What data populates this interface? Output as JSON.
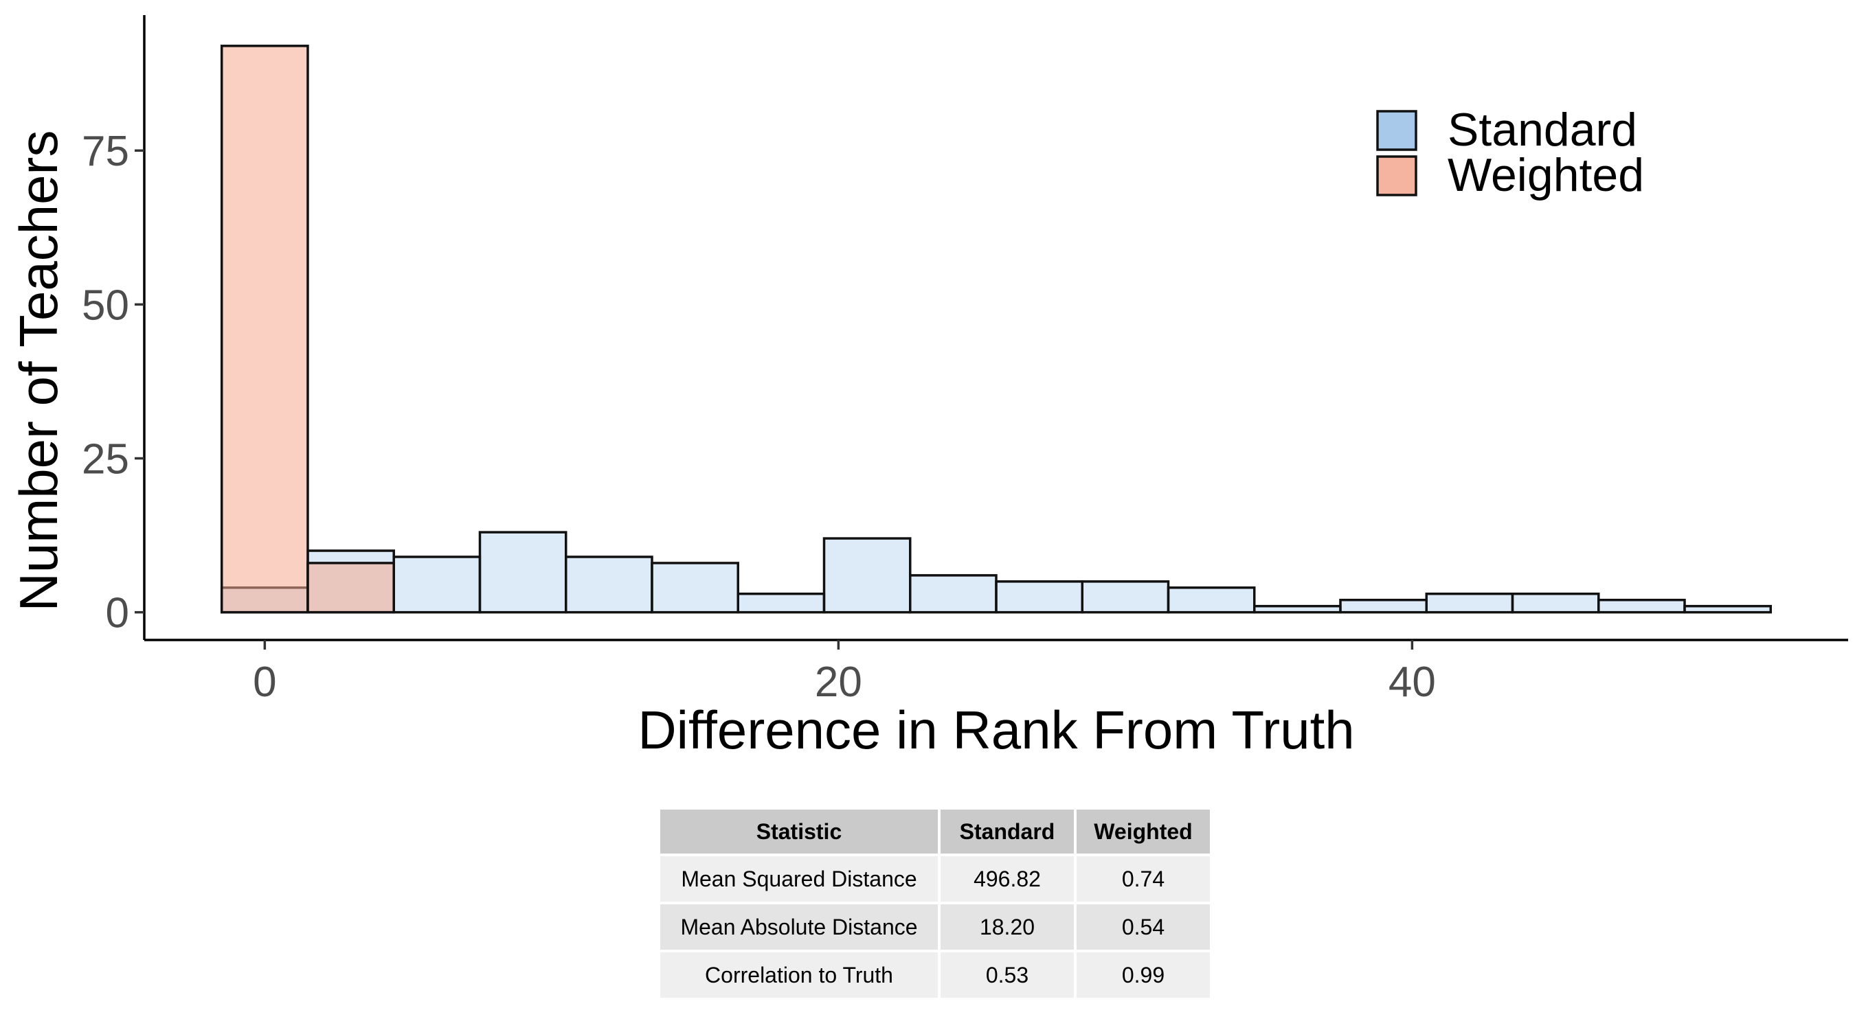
{
  "chart_data": {
    "type": "bar",
    "subtype": "overlapping-histogram",
    "xlabel": "Difference in Rank From Truth",
    "ylabel": "Number of Teachers",
    "xlim": [
      -4.2,
      55.2
    ],
    "ylim": [
      -4.5,
      97
    ],
    "x_ticks": [
      0,
      20,
      40
    ],
    "y_ticks": [
      0,
      25,
      50,
      75
    ],
    "grid": false,
    "legend_position": "top-right",
    "bin_width": 3,
    "series": [
      {
        "name": "Standard",
        "color": "#c6dcf2",
        "legend_color": "#a9c9eb",
        "opacity": 0.6,
        "bins": [
          {
            "x0": -1.5,
            "x1": 1.5,
            "count": 4
          },
          {
            "x0": 1.5,
            "x1": 4.5,
            "count": 10
          },
          {
            "x0": 4.5,
            "x1": 7.5,
            "count": 9
          },
          {
            "x0": 7.5,
            "x1": 10.5,
            "count": 13
          },
          {
            "x0": 10.5,
            "x1": 13.5,
            "count": 9
          },
          {
            "x0": 13.5,
            "x1": 16.5,
            "count": 8
          },
          {
            "x0": 16.5,
            "x1": 19.5,
            "count": 3
          },
          {
            "x0": 19.5,
            "x1": 22.5,
            "count": 12
          },
          {
            "x0": 22.5,
            "x1": 25.5,
            "count": 6
          },
          {
            "x0": 25.5,
            "x1": 28.5,
            "count": 5
          },
          {
            "x0": 28.5,
            "x1": 31.5,
            "count": 5
          },
          {
            "x0": 31.5,
            "x1": 34.5,
            "count": 4
          },
          {
            "x0": 34.5,
            "x1": 37.5,
            "count": 1
          },
          {
            "x0": 37.5,
            "x1": 40.5,
            "count": 2
          },
          {
            "x0": 40.5,
            "x1": 43.5,
            "count": 3
          },
          {
            "x0": 43.5,
            "x1": 46.5,
            "count": 3
          },
          {
            "x0": 46.5,
            "x1": 49.5,
            "count": 2
          },
          {
            "x0": 49.5,
            "x1": 52.5,
            "count": 1
          }
        ]
      },
      {
        "name": "Weighted",
        "color": "#f4aa90",
        "legend_color": "#f5b4a0",
        "opacity": 0.55,
        "bins": [
          {
            "x0": -1.5,
            "x1": 1.5,
            "count": 92
          },
          {
            "x0": 1.5,
            "x1": 4.5,
            "count": 8
          }
        ]
      }
    ]
  },
  "table": {
    "headers": [
      "Statistic",
      "Standard",
      "Weighted"
    ],
    "rows": [
      [
        "Mean Squared Distance",
        "496.82",
        "0.74"
      ],
      [
        "Mean Absolute Distance",
        "18.20",
        "0.54"
      ],
      [
        "Correlation to Truth",
        "0.53",
        "0.99"
      ]
    ]
  }
}
